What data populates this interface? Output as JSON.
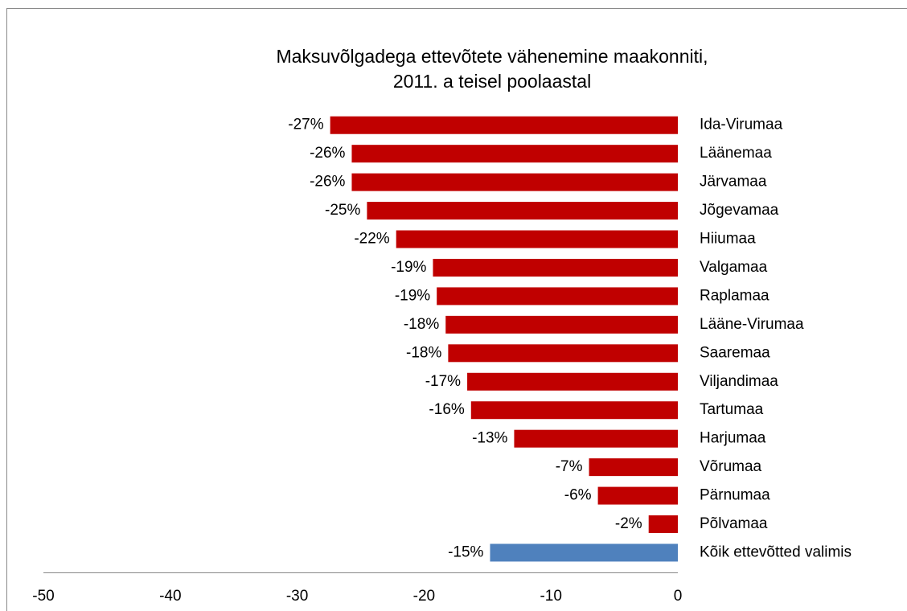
{
  "chart_data": {
    "type": "hbar",
    "title": [
      "Maksuvõlgadega ettevõtete vähenemine maakonniti,",
      "2011. a teisel poolaastal"
    ],
    "categories": [
      "Ida-Virumaa",
      "Läänemaa",
      "Järvamaa",
      "Jõgevamaa",
      "Hiiumaa",
      "Valgamaa",
      "Raplamaa",
      "Lääne-Virumaa",
      "Saaremaa",
      "Viljandimaa",
      "Tartumaa",
      "Harjumaa",
      "Võrumaa",
      "Pärnumaa",
      "Põlvamaa",
      "Kõik ettevõtted valimis"
    ],
    "values": [
      -27.4,
      -25.7,
      -25.7,
      -24.5,
      -22.2,
      -19.3,
      -19.0,
      -18.3,
      -18.1,
      -16.6,
      -16.3,
      -12.9,
      -7.0,
      -6.3,
      -2.3,
      -14.8
    ],
    "value_labels": [
      "-27%",
      "-26%",
      "-26%",
      "-25%",
      "-22%",
      "-19%",
      "-19%",
      "-18%",
      "-18%",
      "-17%",
      "-16%",
      "-13%",
      "-7%",
      "-6%",
      "-2%",
      "-15%"
    ],
    "colors": [
      "#c00000",
      "#c00000",
      "#c00000",
      "#c00000",
      "#c00000",
      "#c00000",
      "#c00000",
      "#c00000",
      "#c00000",
      "#c00000",
      "#c00000",
      "#c00000",
      "#c00000",
      "#c00000",
      "#c00000",
      "#4f81bd"
    ],
    "xlim": [
      -50,
      0
    ],
    "xticks": [
      -50,
      -40,
      -30,
      -20,
      -10,
      0
    ]
  }
}
